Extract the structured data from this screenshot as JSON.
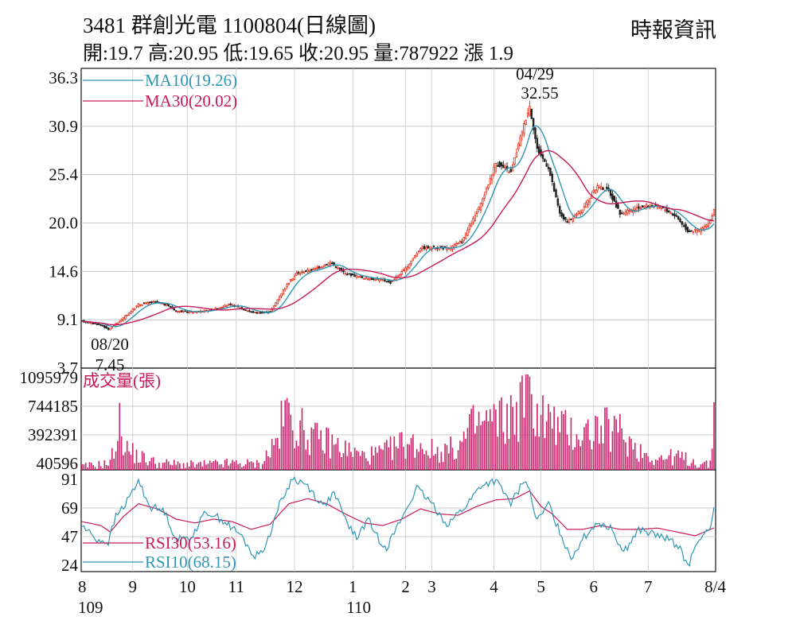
{
  "header": {
    "title": "3481  群創光電 1100804(日線圖)",
    "source": "時報資訊",
    "quote": "開:19.7 高:20.95 低:19.65 收:20.95 量:787922 漲 1.9"
  },
  "colors": {
    "up": "#e8321e",
    "down": "#222222",
    "ma10": "#2e97b4",
    "ma30": "#c8195a",
    "volume": "#cc2a6e",
    "rsi30": "#c8195a",
    "rsi10": "#2e97b4",
    "text_red": "#c8195a",
    "text_blue": "#2e97b4"
  },
  "chart_data": [
    {
      "type": "candlestick",
      "title": "3481  群創光電 1100804(日線圖)",
      "y_ticks": [
        "36.3",
        "30.9",
        "25.4",
        "20.0",
        "14.6",
        "9.1",
        "3.7"
      ],
      "ylim": [
        3.7,
        36.3
      ],
      "legend": [
        {
          "name": "MA10(19.26)",
          "color": "#2e97b4"
        },
        {
          "name": "MA30(20.02)",
          "color": "#c8195a"
        }
      ],
      "annotations": [
        {
          "date": "08/20",
          "value": "7.45"
        },
        {
          "date": "04/29",
          "value": "32.55"
        }
      ],
      "keypoints": [
        {
          "d": 0,
          "v": 8.8
        },
        {
          "d": 10,
          "v": 8.4
        },
        {
          "d": 14,
          "v": 7.9
        },
        {
          "d": 20,
          "v": 8.8
        },
        {
          "d": 30,
          "v": 10.6
        },
        {
          "d": 38,
          "v": 10.9
        },
        {
          "d": 46,
          "v": 10.5
        },
        {
          "d": 50,
          "v": 9.9
        },
        {
          "d": 60,
          "v": 9.8
        },
        {
          "d": 70,
          "v": 10.1
        },
        {
          "d": 78,
          "v": 10.6
        },
        {
          "d": 84,
          "v": 10.3
        },
        {
          "d": 90,
          "v": 9.8
        },
        {
          "d": 96,
          "v": 9.7
        },
        {
          "d": 100,
          "v": 9.8
        },
        {
          "d": 108,
          "v": 12.5
        },
        {
          "d": 114,
          "v": 14.0
        },
        {
          "d": 124,
          "v": 14.5
        },
        {
          "d": 132,
          "v": 15.2
        },
        {
          "d": 140,
          "v": 14.0
        },
        {
          "d": 150,
          "v": 13.5
        },
        {
          "d": 160,
          "v": 13.3
        },
        {
          "d": 164,
          "v": 13.0
        },
        {
          "d": 172,
          "v": 14.5
        },
        {
          "d": 180,
          "v": 16.8
        },
        {
          "d": 188,
          "v": 16.8
        },
        {
          "d": 195,
          "v": 16.7
        },
        {
          "d": 202,
          "v": 17.5
        },
        {
          "d": 212,
          "v": 21.5
        },
        {
          "d": 220,
          "v": 26.0
        },
        {
          "d": 228,
          "v": 25.0
        },
        {
          "d": 234,
          "v": 29.5
        },
        {
          "d": 238,
          "v": 32.2
        },
        {
          "d": 242,
          "v": 27.5
        },
        {
          "d": 248,
          "v": 25.5
        },
        {
          "d": 254,
          "v": 20.5
        },
        {
          "d": 258,
          "v": 19.5
        },
        {
          "d": 266,
          "v": 21.0
        },
        {
          "d": 274,
          "v": 23.5
        },
        {
          "d": 280,
          "v": 23.0
        },
        {
          "d": 286,
          "v": 20.5
        },
        {
          "d": 294,
          "v": 21.0
        },
        {
          "d": 300,
          "v": 21.4
        },
        {
          "d": 308,
          "v": 21.2
        },
        {
          "d": 316,
          "v": 20.2
        },
        {
          "d": 322,
          "v": 18.6
        },
        {
          "d": 328,
          "v": 18.7
        },
        {
          "d": 333,
          "v": 19.3
        },
        {
          "d": 336,
          "v": 20.95
        }
      ]
    },
    {
      "type": "bar",
      "title": "成交量(張)",
      "y_ticks": [
        "1095979",
        "744185",
        "392391",
        "40596"
      ],
      "ylim": [
        40596,
        1095979
      ],
      "keypoints": [
        {
          "d": 0,
          "v": 80000
        },
        {
          "d": 15,
          "v": 120000
        },
        {
          "d": 20,
          "v": 560000
        },
        {
          "d": 24,
          "v": 280000
        },
        {
          "d": 30,
          "v": 200000
        },
        {
          "d": 40,
          "v": 120000
        },
        {
          "d": 60,
          "v": 100000
        },
        {
          "d": 80,
          "v": 120000
        },
        {
          "d": 95,
          "v": 110000
        },
        {
          "d": 104,
          "v": 400000
        },
        {
          "d": 108,
          "v": 720000
        },
        {
          "d": 116,
          "v": 520000
        },
        {
          "d": 124,
          "v": 400000
        },
        {
          "d": 132,
          "v": 360000
        },
        {
          "d": 140,
          "v": 280000
        },
        {
          "d": 150,
          "v": 200000
        },
        {
          "d": 160,
          "v": 240000
        },
        {
          "d": 170,
          "v": 350000
        },
        {
          "d": 180,
          "v": 330000
        },
        {
          "d": 188,
          "v": 250000
        },
        {
          "d": 200,
          "v": 300000
        },
        {
          "d": 208,
          "v": 550000
        },
        {
          "d": 216,
          "v": 600000
        },
        {
          "d": 224,
          "v": 620000
        },
        {
          "d": 230,
          "v": 680000
        },
        {
          "d": 236,
          "v": 900000
        },
        {
          "d": 244,
          "v": 680000
        },
        {
          "d": 254,
          "v": 520000
        },
        {
          "d": 264,
          "v": 460000
        },
        {
          "d": 276,
          "v": 520000
        },
        {
          "d": 286,
          "v": 480000
        },
        {
          "d": 296,
          "v": 270000
        },
        {
          "d": 306,
          "v": 170000
        },
        {
          "d": 316,
          "v": 200000
        },
        {
          "d": 326,
          "v": 130000
        },
        {
          "d": 334,
          "v": 100000
        },
        {
          "d": 336,
          "v": 787922
        }
      ]
    },
    {
      "type": "line",
      "y_ticks": [
        "91",
        "69",
        "47",
        "24"
      ],
      "ylim": [
        24,
        91
      ],
      "legend": [
        {
          "name": "RSI30(53.16)",
          "color": "#c8195a"
        },
        {
          "name": "RSI10(68.15)",
          "color": "#2e97b4"
        }
      ],
      "series": [
        {
          "name": "RSI30(53.16)",
          "keypoints": [
            {
              "d": 0,
              "v": 58
            },
            {
              "d": 10,
              "v": 55
            },
            {
              "d": 15,
              "v": 50
            },
            {
              "d": 22,
              "v": 62
            },
            {
              "d": 30,
              "v": 72
            },
            {
              "d": 40,
              "v": 68
            },
            {
              "d": 50,
              "v": 60
            },
            {
              "d": 60,
              "v": 57
            },
            {
              "d": 70,
              "v": 60
            },
            {
              "d": 80,
              "v": 58
            },
            {
              "d": 90,
              "v": 52
            },
            {
              "d": 100,
              "v": 56
            },
            {
              "d": 110,
              "v": 72
            },
            {
              "d": 120,
              "v": 76
            },
            {
              "d": 130,
              "v": 72
            },
            {
              "d": 140,
              "v": 64
            },
            {
              "d": 150,
              "v": 57
            },
            {
              "d": 160,
              "v": 55
            },
            {
              "d": 170,
              "v": 60
            },
            {
              "d": 180,
              "v": 68
            },
            {
              "d": 190,
              "v": 64
            },
            {
              "d": 200,
              "v": 63
            },
            {
              "d": 210,
              "v": 70
            },
            {
              "d": 220,
              "v": 75
            },
            {
              "d": 230,
              "v": 76
            },
            {
              "d": 238,
              "v": 82
            },
            {
              "d": 244,
              "v": 70
            },
            {
              "d": 250,
              "v": 64
            },
            {
              "d": 258,
              "v": 52
            },
            {
              "d": 266,
              "v": 52
            },
            {
              "d": 276,
              "v": 55
            },
            {
              "d": 286,
              "v": 52
            },
            {
              "d": 296,
              "v": 52
            },
            {
              "d": 306,
              "v": 53
            },
            {
              "d": 316,
              "v": 50
            },
            {
              "d": 326,
              "v": 47
            },
            {
              "d": 336,
              "v": 53.16
            }
          ]
        },
        {
          "name": "RSI10(68.15)",
          "keypoints": [
            {
              "d": 0,
              "v": 55
            },
            {
              "d": 8,
              "v": 44
            },
            {
              "d": 14,
              "v": 42
            },
            {
              "d": 18,
              "v": 62
            },
            {
              "d": 24,
              "v": 74
            },
            {
              "d": 30,
              "v": 90
            },
            {
              "d": 36,
              "v": 70
            },
            {
              "d": 44,
              "v": 66
            },
            {
              "d": 50,
              "v": 44
            },
            {
              "d": 58,
              "v": 46
            },
            {
              "d": 66,
              "v": 66
            },
            {
              "d": 74,
              "v": 60
            },
            {
              "d": 84,
              "v": 48
            },
            {
              "d": 92,
              "v": 30
            },
            {
              "d": 98,
              "v": 40
            },
            {
              "d": 104,
              "v": 68
            },
            {
              "d": 112,
              "v": 92
            },
            {
              "d": 120,
              "v": 86
            },
            {
              "d": 128,
              "v": 70
            },
            {
              "d": 134,
              "v": 80
            },
            {
              "d": 140,
              "v": 60
            },
            {
              "d": 146,
              "v": 45
            },
            {
              "d": 152,
              "v": 60
            },
            {
              "d": 158,
              "v": 44
            },
            {
              "d": 162,
              "v": 38
            },
            {
              "d": 168,
              "v": 55
            },
            {
              "d": 178,
              "v": 84
            },
            {
              "d": 186,
              "v": 72
            },
            {
              "d": 194,
              "v": 56
            },
            {
              "d": 204,
              "v": 70
            },
            {
              "d": 212,
              "v": 86
            },
            {
              "d": 220,
              "v": 90
            },
            {
              "d": 228,
              "v": 72
            },
            {
              "d": 236,
              "v": 92
            },
            {
              "d": 242,
              "v": 58
            },
            {
              "d": 248,
              "v": 72
            },
            {
              "d": 254,
              "v": 50
            },
            {
              "d": 260,
              "v": 30
            },
            {
              "d": 266,
              "v": 44
            },
            {
              "d": 274,
              "v": 58
            },
            {
              "d": 282,
              "v": 52
            },
            {
              "d": 288,
              "v": 34
            },
            {
              "d": 296,
              "v": 52
            },
            {
              "d": 304,
              "v": 48
            },
            {
              "d": 312,
              "v": 44
            },
            {
              "d": 318,
              "v": 38
            },
            {
              "d": 322,
              "v": 22
            },
            {
              "d": 328,
              "v": 46
            },
            {
              "d": 334,
              "v": 50
            },
            {
              "d": 336,
              "v": 68.15
            }
          ]
        }
      ]
    }
  ],
  "x_axis": {
    "month_labels": [
      {
        "label": "8",
        "d": 0
      },
      {
        "label": "9",
        "d": 27
      },
      {
        "label": "10",
        "d": 56
      },
      {
        "label": "11",
        "d": 82
      },
      {
        "label": "12",
        "d": 113
      },
      {
        "label": "1",
        "d": 144
      },
      {
        "label": "2",
        "d": 172
      },
      {
        "label": "3",
        "d": 186
      },
      {
        "label": "4",
        "d": 219
      },
      {
        "label": "5",
        "d": 244
      },
      {
        "label": "6",
        "d": 272
      },
      {
        "label": "7",
        "d": 301
      },
      {
        "label": "8/4",
        "d": 336
      }
    ],
    "year_labels": [
      {
        "label": "109",
        "d": 0
      },
      {
        "label": "110",
        "d": 144
      }
    ]
  }
}
